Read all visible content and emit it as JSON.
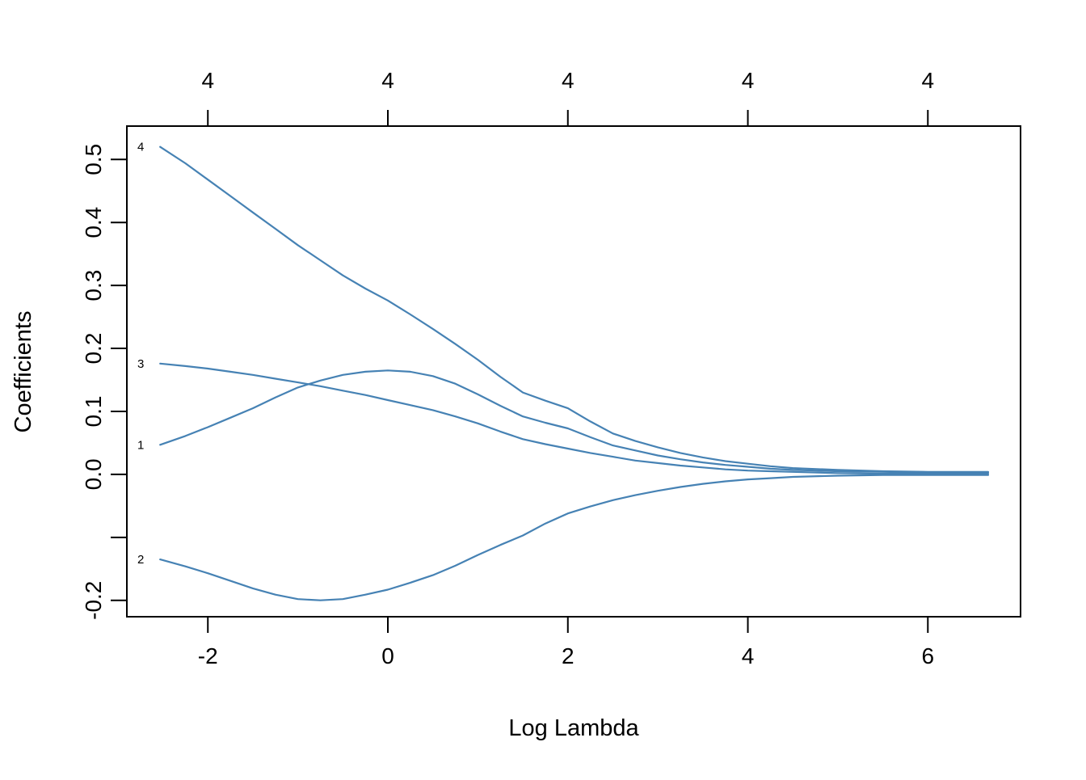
{
  "figure": {
    "background": "#ffffff",
    "line_color": "#4682b4",
    "axis_color": "#000000"
  },
  "chart_data": {
    "type": "line",
    "title": "",
    "xlabel": "Log Lambda",
    "ylabel": "Coefficients",
    "legend_position": "none",
    "grid": false,
    "xlim": [
      -2.9,
      7.03
    ],
    "ylim": [
      -0.226,
      0.553
    ],
    "x_ticks": [
      {
        "value": -2,
        "label": "-2"
      },
      {
        "value": 0,
        "label": "0"
      },
      {
        "value": 2,
        "label": "2"
      },
      {
        "value": 4,
        "label": "4"
      },
      {
        "value": 6,
        "label": "6"
      }
    ],
    "y_ticks": [
      {
        "value": 0.5,
        "label": "0.5"
      },
      {
        "value": 0.4,
        "label": "0.4"
      },
      {
        "value": 0.3,
        "label": "0.3"
      },
      {
        "value": 0.2,
        "label": "0.2"
      },
      {
        "value": 0.1,
        "label": "0.1"
      },
      {
        "value": 0.0,
        "label": "0.0"
      },
      {
        "value": -0.1,
        "label": ""
      },
      {
        "value": -0.2,
        "label": "-0.2"
      }
    ],
    "top_axis_ticks": [
      {
        "value": -2,
        "label": "4"
      },
      {
        "value": 0,
        "label": "4"
      },
      {
        "value": 2,
        "label": "4"
      },
      {
        "value": 4,
        "label": "4"
      },
      {
        "value": 6,
        "label": "4"
      }
    ],
    "x": [
      -2.53,
      -2.25,
      -2.0,
      -1.75,
      -1.5,
      -1.25,
      -1.0,
      -0.75,
      -0.5,
      -0.25,
      0.0,
      0.25,
      0.5,
      0.75,
      1.0,
      1.25,
      1.5,
      1.75,
      2.0,
      2.25,
      2.5,
      2.75,
      3.0,
      3.25,
      3.5,
      3.75,
      4.0,
      4.25,
      4.5,
      5.0,
      5.5,
      6.0,
      6.67
    ],
    "series": [
      {
        "name": "1",
        "values": [
          0.047,
          0.061,
          0.075,
          0.09,
          0.105,
          0.122,
          0.138,
          0.149,
          0.158,
          0.163,
          0.165,
          0.163,
          0.156,
          0.144,
          0.127,
          0.109,
          0.092,
          0.082,
          0.073,
          0.059,
          0.046,
          0.038,
          0.03,
          0.024,
          0.019,
          0.015,
          0.012,
          0.009,
          0.007,
          0.005,
          0.004,
          0.003,
          0.003
        ]
      },
      {
        "name": "2",
        "values": [
          -0.135,
          -0.146,
          -0.157,
          -0.169,
          -0.181,
          -0.191,
          -0.198,
          -0.2,
          -0.198,
          -0.191,
          -0.183,
          -0.172,
          -0.16,
          -0.145,
          -0.128,
          -0.112,
          -0.097,
          -0.078,
          -0.062,
          -0.051,
          -0.041,
          -0.033,
          -0.026,
          -0.02,
          -0.015,
          -0.011,
          -0.008,
          -0.006,
          -0.004,
          -0.002,
          -0.001,
          -0.001,
          -0.001
        ]
      },
      {
        "name": "3",
        "values": [
          0.176,
          0.172,
          0.168,
          0.163,
          0.158,
          0.152,
          0.146,
          0.14,
          0.133,
          0.126,
          0.118,
          0.11,
          0.102,
          0.092,
          0.081,
          0.068,
          0.056,
          0.048,
          0.041,
          0.034,
          0.028,
          0.022,
          0.018,
          0.014,
          0.011,
          0.008,
          0.006,
          0.005,
          0.004,
          0.002,
          0.001,
          0.001,
          0.001
        ]
      },
      {
        "name": "4",
        "values": [
          0.52,
          0.494,
          0.468,
          0.442,
          0.416,
          0.39,
          0.364,
          0.34,
          0.316,
          0.295,
          0.276,
          0.254,
          0.231,
          0.207,
          0.182,
          0.155,
          0.13,
          0.117,
          0.105,
          0.084,
          0.065,
          0.053,
          0.043,
          0.034,
          0.027,
          0.021,
          0.017,
          0.013,
          0.01,
          0.007,
          0.005,
          0.004,
          0.004
        ]
      }
    ]
  }
}
